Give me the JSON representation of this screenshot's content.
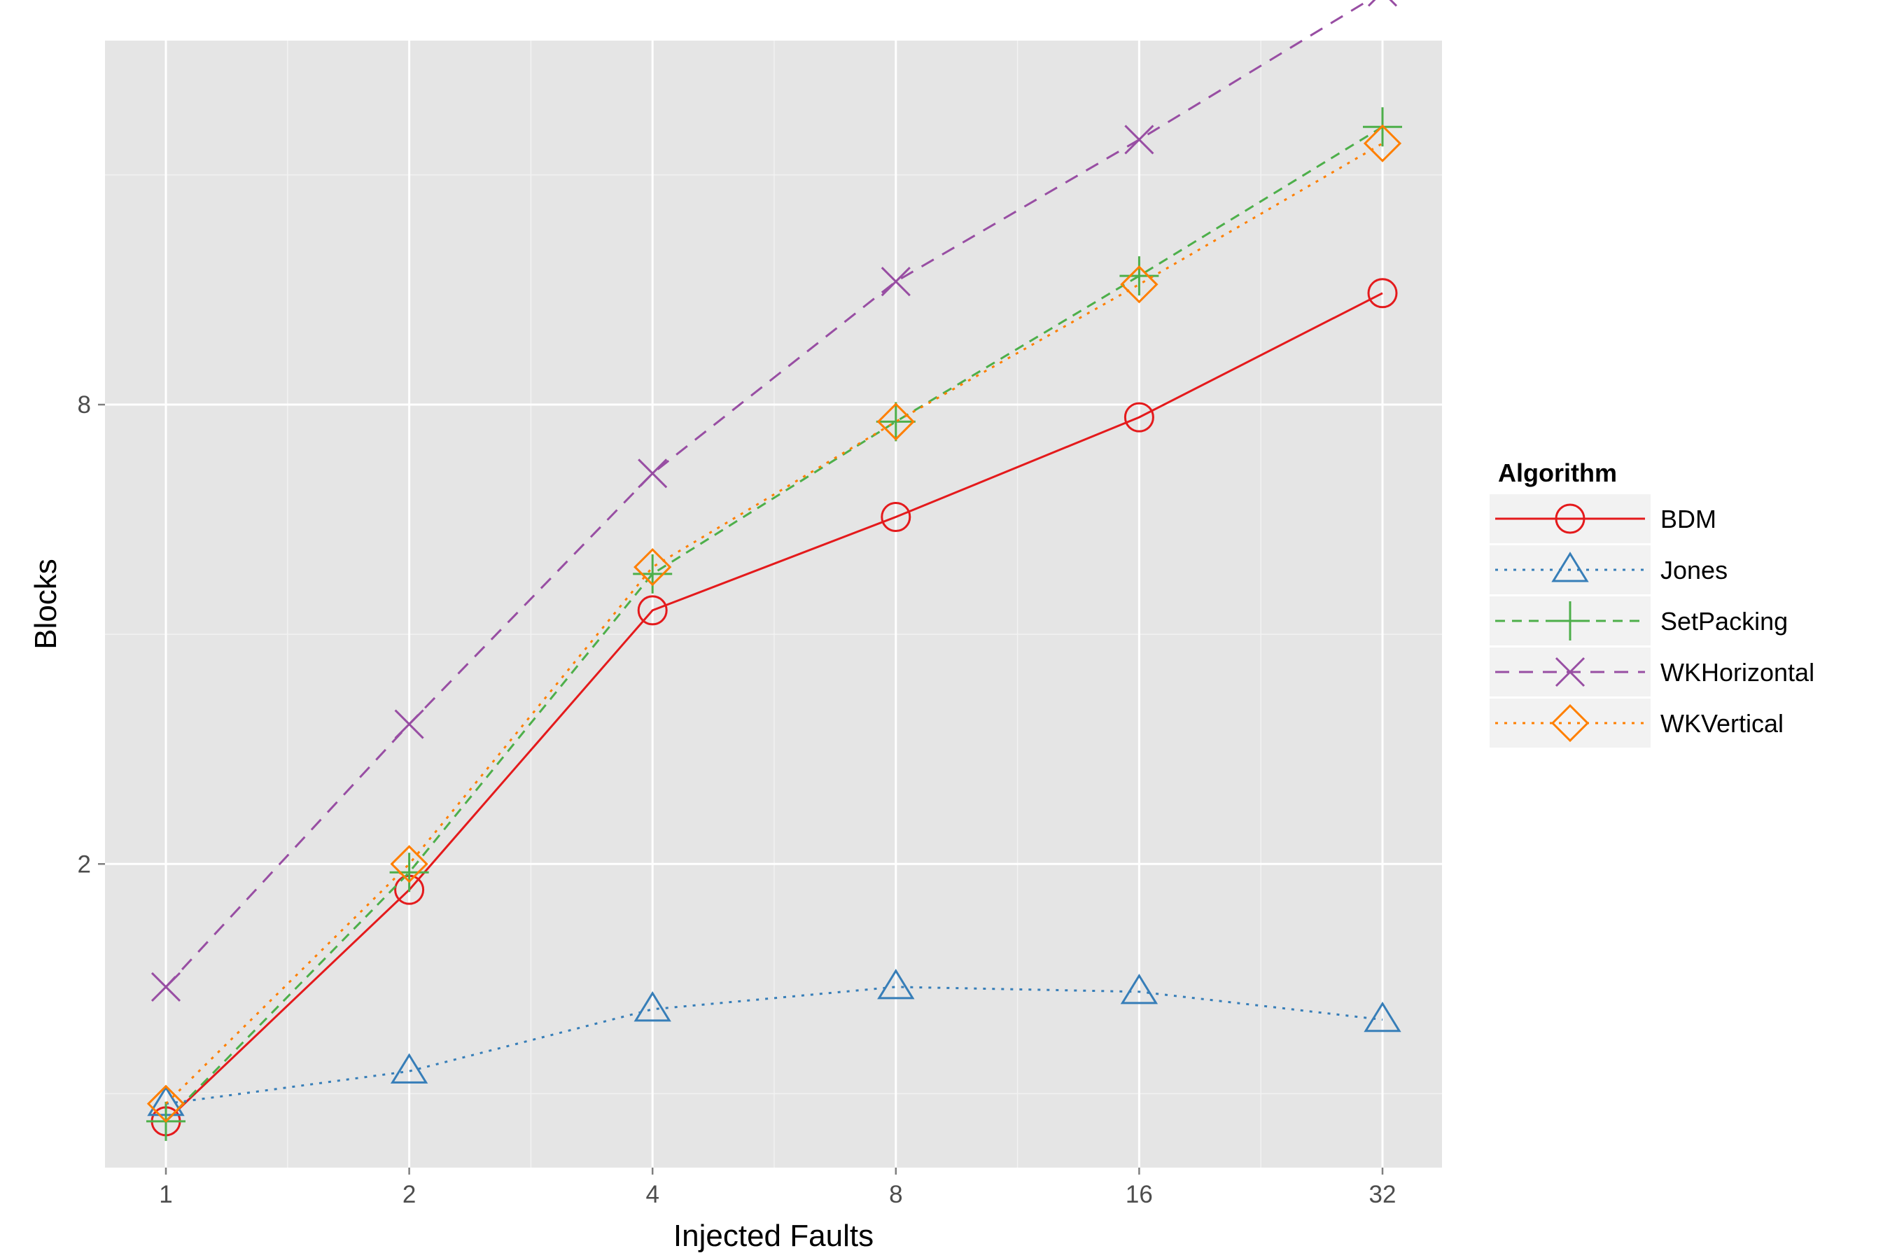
{
  "chart_data": {
    "type": "line",
    "xlabel": "Injected Faults",
    "ylabel": "Blocks",
    "x_scale": "log2",
    "y_scale": "log",
    "x": [
      1,
      2,
      4,
      8,
      16,
      32
    ],
    "x_ticks": [
      "1",
      "2",
      "4",
      "8",
      "16",
      "32"
    ],
    "y_ticks": [
      2,
      8
    ],
    "y_tick_labels": [
      "2",
      "8"
    ],
    "ylim": [
      0.8,
      24
    ],
    "grid": true,
    "legend": {
      "title": "Algorithm",
      "placement": "right"
    },
    "series": [
      {
        "name": "BDM",
        "color": "#e41a1c",
        "marker": "circle",
        "dash": "solid",
        "values": [
          0.92,
          1.85,
          4.3,
          5.7,
          7.7,
          11.2
        ]
      },
      {
        "name": "Jones",
        "color": "#377eb8",
        "marker": "triangle",
        "dash": "dotted",
        "values": [
          0.97,
          1.07,
          1.29,
          1.38,
          1.36,
          1.25
        ]
      },
      {
        "name": "SetPacking",
        "color": "#4daf4a",
        "marker": "plus",
        "dash": "dashed",
        "values": [
          0.92,
          1.95,
          4.8,
          7.6,
          11.8,
          18.5
        ]
      },
      {
        "name": "WKHorizontal",
        "color": "#984ea3",
        "marker": "x",
        "dash": "longdash",
        "values": [
          1.38,
          3.05,
          6.5,
          11.6,
          17.8,
          27.8
        ]
      },
      {
        "name": "WKVertical",
        "color": "#ff7f00",
        "marker": "diamond",
        "dash": "dotted",
        "values": [
          0.97,
          2.0,
          4.9,
          7.6,
          11.5,
          17.6
        ]
      }
    ]
  }
}
